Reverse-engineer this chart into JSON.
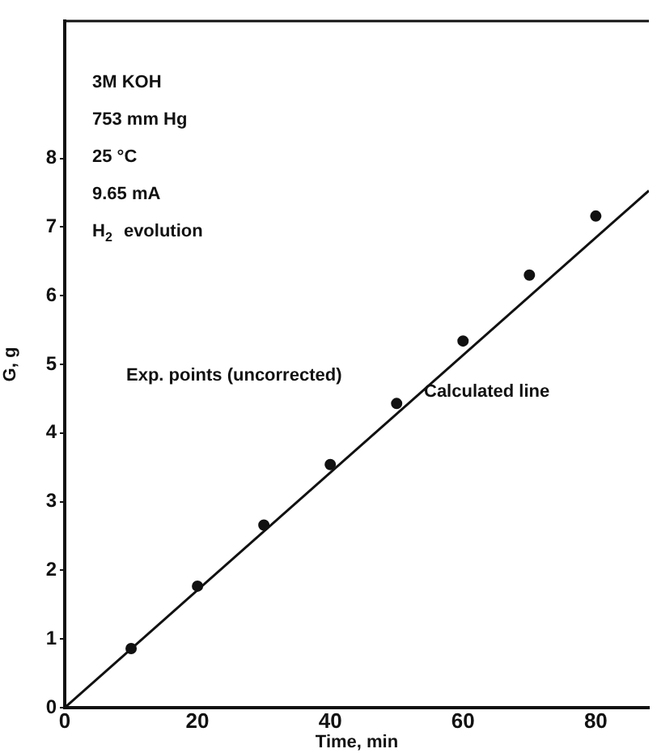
{
  "chart_data": {
    "type": "scatter",
    "xlabel": "Time, min",
    "ylabel": "G, g",
    "xlim": [
      0,
      88
    ],
    "xticks": [
      0,
      20,
      40,
      60,
      80
    ],
    "ylim": [
      0,
      10
    ],
    "yticks": [
      0,
      1,
      2,
      3,
      4,
      5,
      6,
      7,
      8
    ],
    "grid": false,
    "legend": false,
    "marker": "circle",
    "series": [
      {
        "name": "Exp. points (uncorrected)",
        "color": "#111111",
        "x": [
          10,
          20,
          30,
          40,
          50,
          60,
          70,
          80
        ],
        "values": [
          0.86,
          1.77,
          2.66,
          3.54,
          4.43,
          5.34,
          6.3,
          7.16
        ]
      },
      {
        "name": "Calculated line",
        "type": "line",
        "color": "#111111",
        "marker": "none",
        "line_style": "solid",
        "x": [
          0,
          88
        ],
        "values": [
          0,
          7.53
        ]
      }
    ],
    "annotations": [
      "3M KOH",
      "753 mm Hg",
      "25 °C",
      "9.65 mA",
      "H$_{2}$ evolution"
    ]
  }
}
